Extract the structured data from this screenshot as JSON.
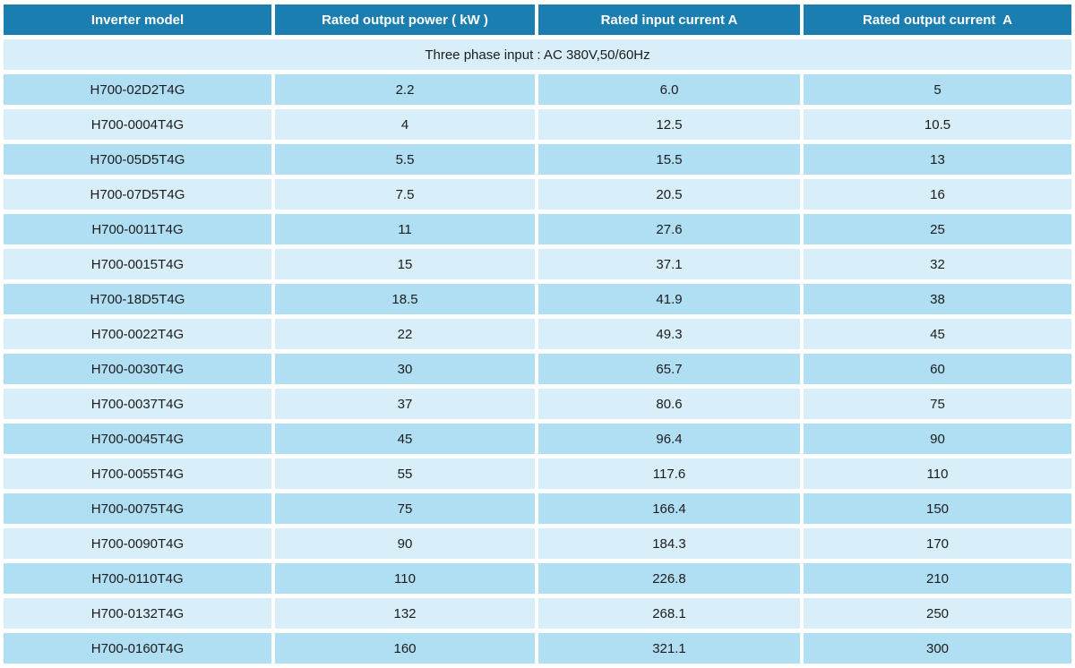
{
  "table": {
    "headers": [
      "Inverter model",
      "Rated output power ( kW )",
      "Rated input current A",
      "Rated output current  A"
    ],
    "span_row": "Three phase input : AC 380V,50/60Hz",
    "rows": [
      [
        "H700-02D2T4G",
        "2.2",
        "6.0",
        "5"
      ],
      [
        "H700-0004T4G",
        "4",
        "12.5",
        "10.5"
      ],
      [
        "H700-05D5T4G",
        "5.5",
        "15.5",
        "13"
      ],
      [
        "H700-07D5T4G",
        "7.5",
        "20.5",
        "16"
      ],
      [
        "H700-0011T4G",
        "11",
        "27.6",
        "25"
      ],
      [
        "H700-0015T4G",
        "15",
        "37.1",
        "32"
      ],
      [
        "H700-18D5T4G",
        "18.5",
        "41.9",
        "38"
      ],
      [
        "H700-0022T4G",
        "22",
        "49.3",
        "45"
      ],
      [
        "H700-0030T4G",
        "30",
        "65.7",
        "60"
      ],
      [
        "H700-0037T4G",
        "37",
        "80.6",
        "75"
      ],
      [
        "H700-0045T4G",
        "45",
        "96.4",
        "90"
      ],
      [
        "H700-0055T4G",
        "55",
        "117.6",
        "110"
      ],
      [
        "H700-0075T4G",
        "75",
        "166.4",
        "150"
      ],
      [
        "H700-0090T4G",
        "90",
        "184.3",
        "170"
      ],
      [
        "H700-0110T4G",
        "110",
        "226.8",
        "210"
      ],
      [
        "H700-0132T4G",
        "132",
        "268.1",
        "250"
      ],
      [
        "H700-0160T4G",
        "160",
        "321.1",
        "300"
      ]
    ],
    "colors": {
      "header_bg": "#1b7eb0",
      "header_text": "#ffffff",
      "row_dark": "#b0def3",
      "row_light": "#d8eef9",
      "body_text": "#1c1c1c",
      "page_bg": "#ffffff"
    }
  }
}
